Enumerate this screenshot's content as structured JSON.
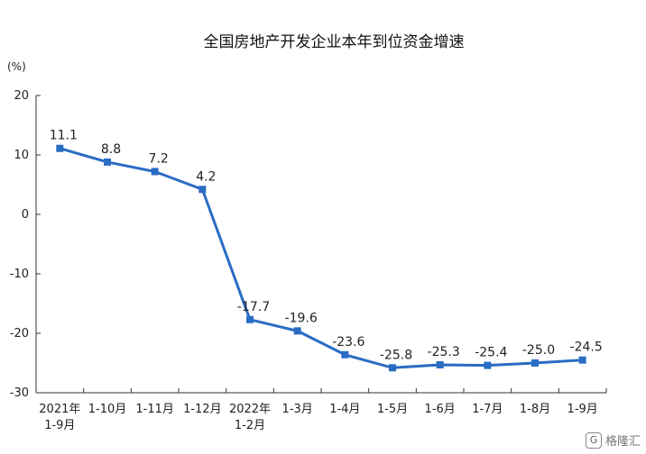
{
  "chart_data": {
    "type": "line",
    "title": "全国房地产开发企业本年到位资金增速",
    "unit": "(%)",
    "ylim": [
      -30,
      20
    ],
    "yticks": [
      20,
      10,
      0,
      -10,
      -20,
      -30
    ],
    "grid": false,
    "categories": [
      [
        "2021年",
        "1-9月"
      ],
      [
        "1-10月"
      ],
      [
        "1-11月"
      ],
      [
        "1-12月"
      ],
      [
        "2022年",
        "1-2月"
      ],
      [
        "1-3月"
      ],
      [
        "1-4月"
      ],
      [
        "1-5月"
      ],
      [
        "1-6月"
      ],
      [
        "1-7月"
      ],
      [
        "1-8月"
      ],
      [
        "1-9月"
      ]
    ],
    "series": [
      {
        "values": [
          11.1,
          8.8,
          7.2,
          4.2,
          -17.7,
          -19.6,
          -23.6,
          -25.8,
          -25.3,
          -25.4,
          -25.0,
          -24.5
        ],
        "labels": [
          "11.1",
          "8.8",
          "7.2",
          "4.2",
          "-17.7",
          "-19.6",
          "-23.6",
          "-25.8",
          "-25.3",
          "-25.4",
          "-25.0",
          "-24.5"
        ],
        "color": "#2a6cc4"
      }
    ]
  },
  "watermark": {
    "icon": "G",
    "text": "格隆汇"
  }
}
